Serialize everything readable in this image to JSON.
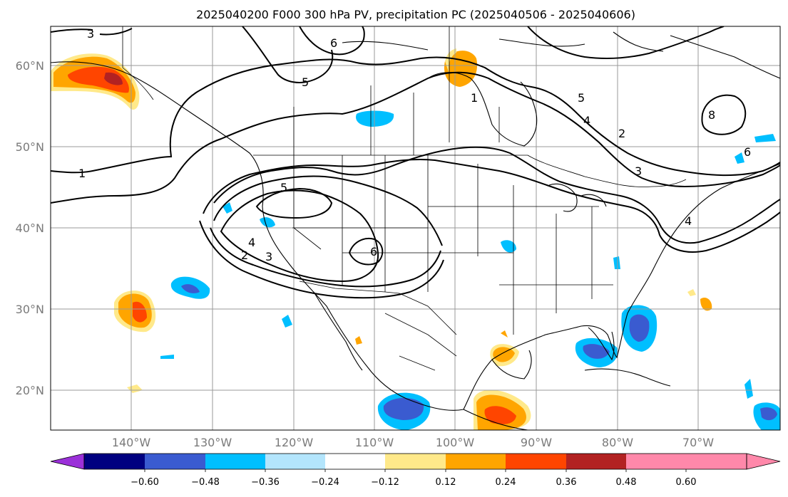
{
  "title": "2025040200 F000 300 hPa PV, precipitation PC (2025040506 - 2025040606)",
  "map": {
    "lat_labels": [
      "60°N",
      "50°N",
      "40°N",
      "30°N",
      "20°N"
    ],
    "lon_labels": [
      "140°W",
      "130°W",
      "120°W",
      "110°W",
      "100°W",
      "90°W",
      "80°W",
      "70°W"
    ],
    "contour_labels": [
      "3",
      "6",
      "5",
      "1",
      "5",
      "4",
      "2",
      "3",
      "1",
      "5",
      "4",
      "3",
      "2",
      "6",
      "6",
      "8",
      "4"
    ]
  },
  "colorbar": {
    "colors": [
      "#9b30d9",
      "#000080",
      "#3a5bd0",
      "#00bfff",
      "#b3e5fc",
      "#ffffff",
      "#ffe98a",
      "#ffa500",
      "#ff4500",
      "#b22222",
      "#ff88aa"
    ],
    "tick_labels": [
      "−0.60",
      "−0.48",
      "−0.36",
      "−0.24",
      "−0.12",
      "0.12",
      "0.24",
      "0.36",
      "0.48",
      "0.60"
    ]
  }
}
